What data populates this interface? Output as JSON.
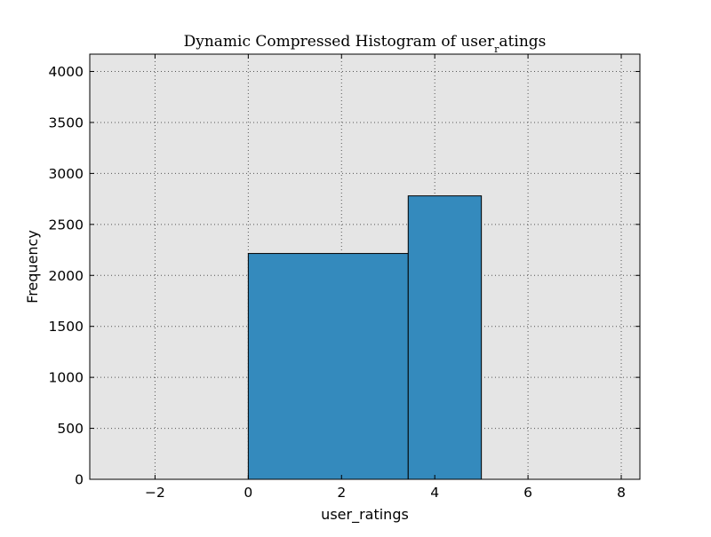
{
  "chart_data": {
    "type": "bar",
    "title": "Dynamic Compressed Histogram of user",
    "title_subscript": "r",
    "title_suffix": "atings",
    "xlabel": "user_ratings",
    "ylabel": "Frequency",
    "xlim": [
      -3.4,
      8.4
    ],
    "ylim": [
      0,
      4170
    ],
    "xticks": [
      -2,
      0,
      2,
      4,
      6,
      8
    ],
    "xtick_labels": [
      "−2",
      "0",
      "2",
      "4",
      "6",
      "8"
    ],
    "yticks": [
      0,
      500,
      1000,
      1500,
      2000,
      2500,
      3000,
      3500,
      4000
    ],
    "ytick_labels": [
      "0",
      "500",
      "1000",
      "1500",
      "2000",
      "2500",
      "3000",
      "3500",
      "4000"
    ],
    "grid": true,
    "bins": [
      {
        "x0": 0,
        "x1": 3.43,
        "value": 2215
      },
      {
        "x0": 3.43,
        "x1": 5.0,
        "value": 2780
      }
    ],
    "colors": {
      "bar": "#348ABD",
      "bar_edge": "#000000",
      "plot_background": "#E5E5E5",
      "grid": "#555555"
    }
  }
}
